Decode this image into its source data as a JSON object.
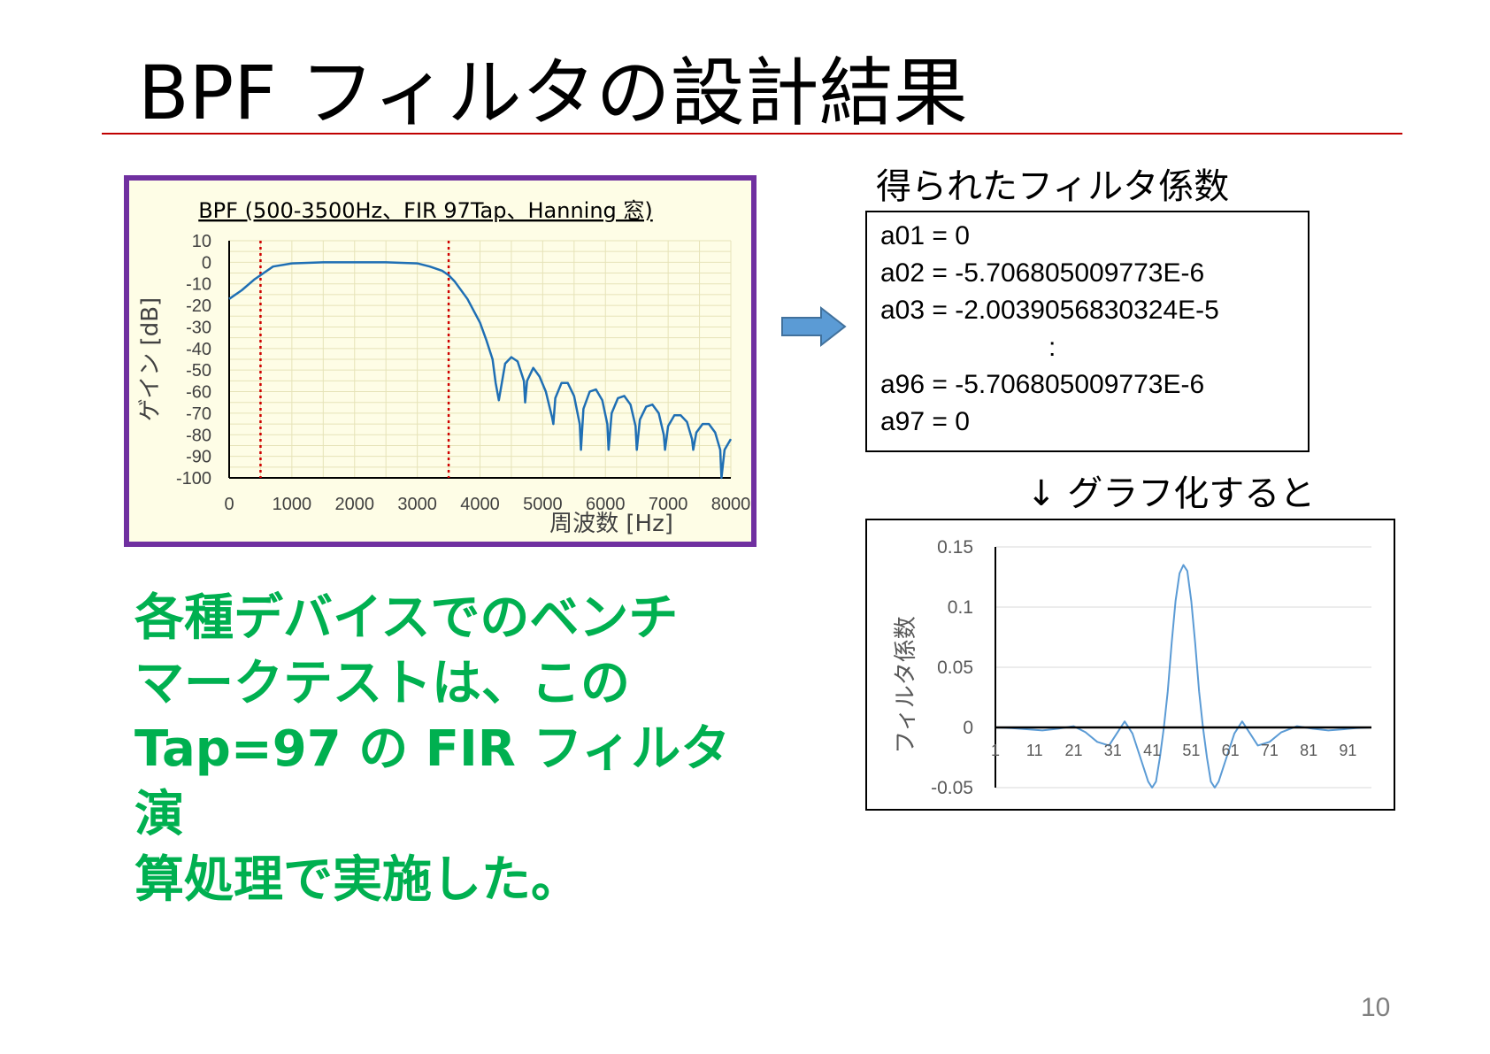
{
  "slide": {
    "title": "BPF フィルタの設計結果",
    "coef_heading": "得られたフィルタ係数",
    "coef_lines": [
      "a01 = 0",
      "a02 = -5.706805009773E-6",
      "a03 = -2.0039056830324E-5",
      ":",
      "a96 = -5.706805009773E-6",
      "a97 = 0"
    ],
    "graph_caption": "↓ グラフ化すると",
    "note_lines": [
      "各種デバイスでのベンチ",
      "マークテストは、この",
      "Tap=97 の FIR フィルタ演",
      "算処理で実施した。"
    ],
    "page_number": "10",
    "accent_color": "#c00000",
    "panel_border_color": "#7030a0",
    "note_color": "#00b050"
  },
  "chart_data": [
    {
      "type": "line",
      "title": "BPF (500-3500Hz、FIR 97Tap、Hanning 窓)",
      "xlabel": "周波数 [Hz]",
      "ylabel": "ゲイン [dB]",
      "xlim": [
        0,
        8000
      ],
      "ylim": [
        -100,
        10
      ],
      "x_ticks": [
        "0",
        "1000",
        "2000",
        "3000",
        "4000",
        "5000",
        "6000",
        "7000",
        "8000"
      ],
      "y_ticks": [
        "10",
        "0",
        "-10",
        "-20",
        "-30",
        "-40",
        "-50",
        "-60",
        "-70",
        "-80",
        "-90",
        "-100"
      ],
      "grid": true,
      "cutoff_markers_hz": [
        500,
        3500
      ],
      "line_color": "#1f6fb4",
      "marker_color": "#d00000",
      "series": [
        {
          "x": [
            0,
            200,
            400,
            500,
            700,
            1000,
            1500,
            2000,
            2500,
            3000,
            3200,
            3400,
            3500,
            3600,
            3800,
            4000,
            4100,
            4200,
            4250,
            4300,
            4400,
            4500,
            4600,
            4700,
            4720,
            4750,
            4850,
            4950,
            5050,
            5150,
            5170,
            5200,
            5300,
            5400,
            5500,
            5590,
            5610,
            5650,
            5750,
            5850,
            5950,
            6030,
            6050,
            6100,
            6200,
            6300,
            6400,
            6480,
            6500,
            6550,
            6650,
            6750,
            6850,
            6930,
            6950,
            7000,
            7100,
            7200,
            7300,
            7380,
            7400,
            7450,
            7550,
            7650,
            7750,
            7830,
            7850,
            7900,
            8000
          ],
          "y": [
            -17,
            -13,
            -8,
            -6,
            -2,
            -0.5,
            0,
            0,
            0,
            -0.5,
            -2,
            -4,
            -6,
            -9,
            -17,
            -28,
            -36,
            -45,
            -56,
            -64,
            -47,
            -44,
            -46,
            -55,
            -65,
            -55,
            -49,
            -53,
            -60,
            -72,
            -75,
            -63,
            -56,
            -56,
            -62,
            -75,
            -87,
            -68,
            -60,
            -59,
            -64,
            -75,
            -87,
            -70,
            -63,
            -62,
            -66,
            -76,
            -87,
            -73,
            -67,
            -66,
            -70,
            -80,
            -87,
            -76,
            -71,
            -71,
            -74,
            -82,
            -87,
            -79,
            -75,
            -75,
            -79,
            -87,
            -100,
            -87,
            -82
          ]
        }
      ]
    },
    {
      "type": "line",
      "title": "",
      "xlabel": "",
      "ylabel": "フィルタ係数",
      "xlim": [
        1,
        97
      ],
      "ylim": [
        -0.05,
        0.15
      ],
      "x_ticks": [
        "1",
        "11",
        "21",
        "31",
        "41",
        "51",
        "61",
        "71",
        "81",
        "91"
      ],
      "y_ticks": [
        "0.15",
        "0.1",
        "0.05",
        "0",
        "-0.05"
      ],
      "grid": true,
      "line_color": "#5b9bd5",
      "series": [
        {
          "x": [
            1,
            5,
            9,
            13,
            17,
            21,
            24,
            27,
            30,
            32,
            34,
            36,
            38,
            40,
            41,
            42,
            43,
            44,
            45,
            46,
            47,
            48,
            49,
            50,
            51,
            52,
            53,
            54,
            55,
            56,
            57,
            58,
            60,
            62,
            64,
            66,
            68,
            71,
            74,
            78,
            82,
            86,
            90,
            93,
            97
          ],
          "y": [
            0,
            -0.0005,
            -0.0015,
            -0.0025,
            -0.001,
            0.001,
            -0.004,
            -0.012,
            -0.015,
            -0.005,
            0.005,
            -0.005,
            -0.025,
            -0.045,
            -0.05,
            -0.045,
            -0.025,
            0,
            0.03,
            0.07,
            0.105,
            0.128,
            0.135,
            0.13,
            0.105,
            0.07,
            0.03,
            0,
            -0.025,
            -0.045,
            -0.05,
            -0.045,
            -0.025,
            -0.005,
            0.005,
            -0.005,
            -0.015,
            -0.012,
            -0.004,
            0.001,
            -0.001,
            -0.0025,
            -0.0015,
            -0.0005,
            0
          ]
        }
      ]
    }
  ]
}
